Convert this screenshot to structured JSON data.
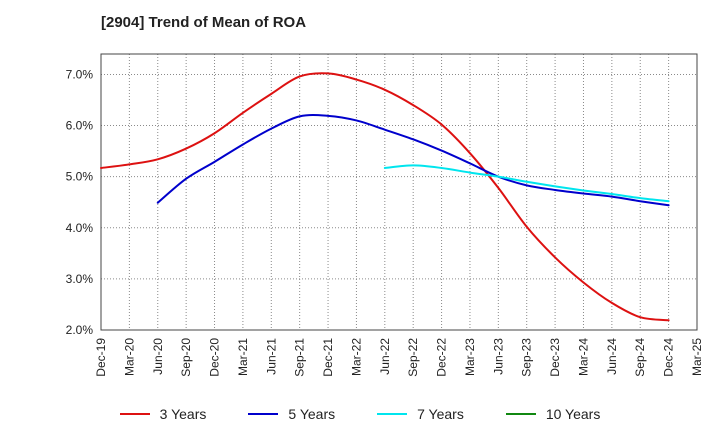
{
  "chart_data": {
    "type": "line",
    "title": "[2904]  Trend of Mean of ROA",
    "xlabel": "",
    "ylabel": "",
    "ylim": [
      2.0,
      7.4
    ],
    "y_ticks": [
      2.0,
      3.0,
      4.0,
      5.0,
      6.0,
      7.0
    ],
    "y_tick_labels": [
      "2.0%",
      "3.0%",
      "4.0%",
      "5.0%",
      "6.0%",
      "7.0%"
    ],
    "x_tick_labels": [
      "Dec-19",
      "Mar-20",
      "Jun-20",
      "Sep-20",
      "Dec-20",
      "Mar-21",
      "Jun-21",
      "Sep-21",
      "Dec-21",
      "Mar-22",
      "Jun-22",
      "Sep-22",
      "Dec-22",
      "Mar-23",
      "Jun-23",
      "Sep-23",
      "Dec-23",
      "Mar-24",
      "Jun-24",
      "Sep-24",
      "Dec-24",
      "Mar-25"
    ],
    "grid": true,
    "legend_position": "bottom",
    "series": [
      {
        "name": "3 Years",
        "color": "#dd1111",
        "start_index": 0,
        "values": [
          5.17,
          5.24,
          5.34,
          5.55,
          5.85,
          6.25,
          6.62,
          6.96,
          7.02,
          6.9,
          6.7,
          6.4,
          6.02,
          5.46,
          4.78,
          4.02,
          3.42,
          2.93,
          2.53,
          2.25,
          2.19
        ]
      },
      {
        "name": "5 Years",
        "color": "#0000cc",
        "start_index": 2,
        "values": [
          4.49,
          4.96,
          5.29,
          5.63,
          5.94,
          6.18,
          6.19,
          6.1,
          5.92,
          5.73,
          5.51,
          5.26,
          5.0,
          4.83,
          4.74,
          4.67,
          4.61,
          4.52,
          4.44
        ]
      },
      {
        "name": "7 Years",
        "color": "#00e5ee",
        "start_index": 10,
        "values": [
          5.17,
          5.22,
          5.17,
          5.08,
          5.0,
          4.9,
          4.81,
          4.73,
          4.66,
          4.58,
          4.52
        ]
      },
      {
        "name": "10 Years",
        "color": "#118811",
        "start_index": 0,
        "values": []
      }
    ]
  }
}
